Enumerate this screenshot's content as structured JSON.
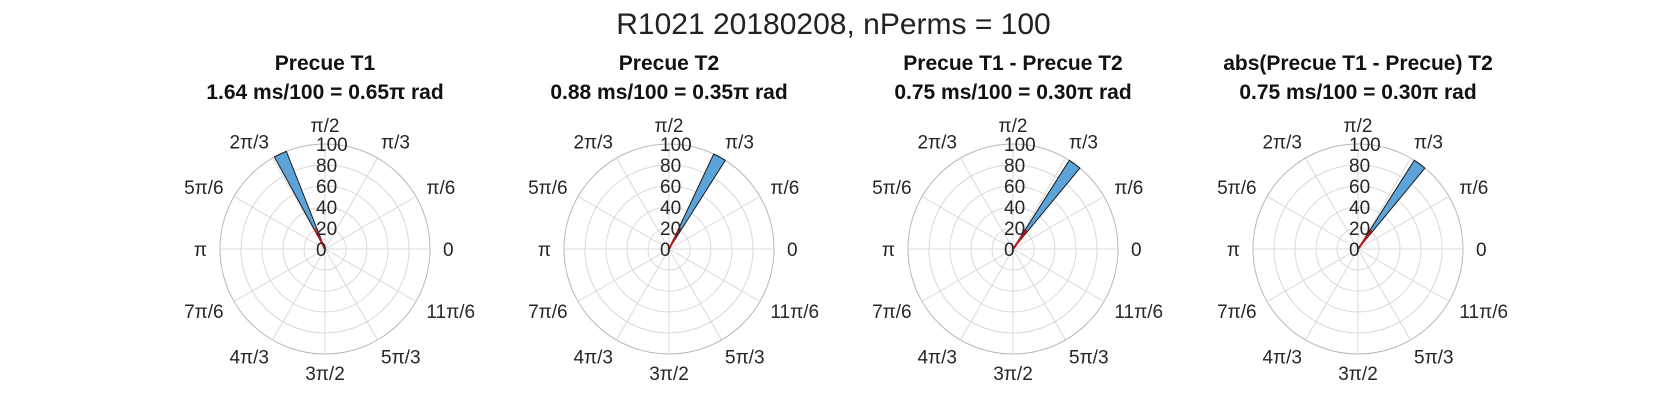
{
  "figure": {
    "title": "R1021 20180208, nPerms = 100"
  },
  "style": {
    "bar_fill": "#5BA3D9",
    "bar_edge": "#1a1a1a",
    "mean_line": "#C0151B",
    "grid": "#D9D9D9"
  },
  "theta_tick_labels": [
    "0",
    "π/6",
    "π/3",
    "π/2",
    "2π/3",
    "5π/6",
    "π",
    "7π/6",
    "4π/3",
    "3π/2",
    "5π/3",
    "11π/6"
  ],
  "r_tick_labels": [
    "0",
    "20",
    "40",
    "60",
    "80",
    "100"
  ],
  "chart_data": [
    {
      "type": "polar-histogram",
      "title": "Precue T1",
      "subtitle": "1.64 ms/100 = 0.65π rad",
      "rlim": [
        0,
        100
      ],
      "r_ticks": [
        0,
        20,
        40,
        60,
        80,
        100
      ],
      "bars": [
        {
          "theta_start_pi": 0.62,
          "theta_end_pi": 0.66,
          "count": 100
        }
      ],
      "mean_angle_pi": 0.65
    },
    {
      "type": "polar-histogram",
      "title": "Precue T2",
      "subtitle": "0.88 ms/100 = 0.35π rad",
      "rlim": [
        0,
        100
      ],
      "r_ticks": [
        0,
        20,
        40,
        60,
        80,
        100
      ],
      "bars": [
        {
          "theta_start_pi": 0.32,
          "theta_end_pi": 0.36,
          "count": 100
        }
      ],
      "mean_angle_pi": 0.35
    },
    {
      "type": "polar-histogram",
      "title": "Precue T1 - Precue T2",
      "subtitle": "0.75 ms/100 = 0.30π rad",
      "rlim": [
        0,
        100
      ],
      "r_ticks": [
        0,
        20,
        40,
        60,
        80,
        100
      ],
      "bars": [
        {
          "theta_start_pi": 0.28,
          "theta_end_pi": 0.32,
          "count": 100
        }
      ],
      "mean_angle_pi": 0.3
    },
    {
      "type": "polar-histogram",
      "title": "abs(Precue T1 - Precue) T2",
      "subtitle": "0.75 ms/100 = 0.30π rad",
      "rlim": [
        0,
        100
      ],
      "r_ticks": [
        0,
        20,
        40,
        60,
        80,
        100
      ],
      "bars": [
        {
          "theta_start_pi": 0.28,
          "theta_end_pi": 0.32,
          "count": 100
        }
      ],
      "mean_angle_pi": 0.3
    }
  ]
}
